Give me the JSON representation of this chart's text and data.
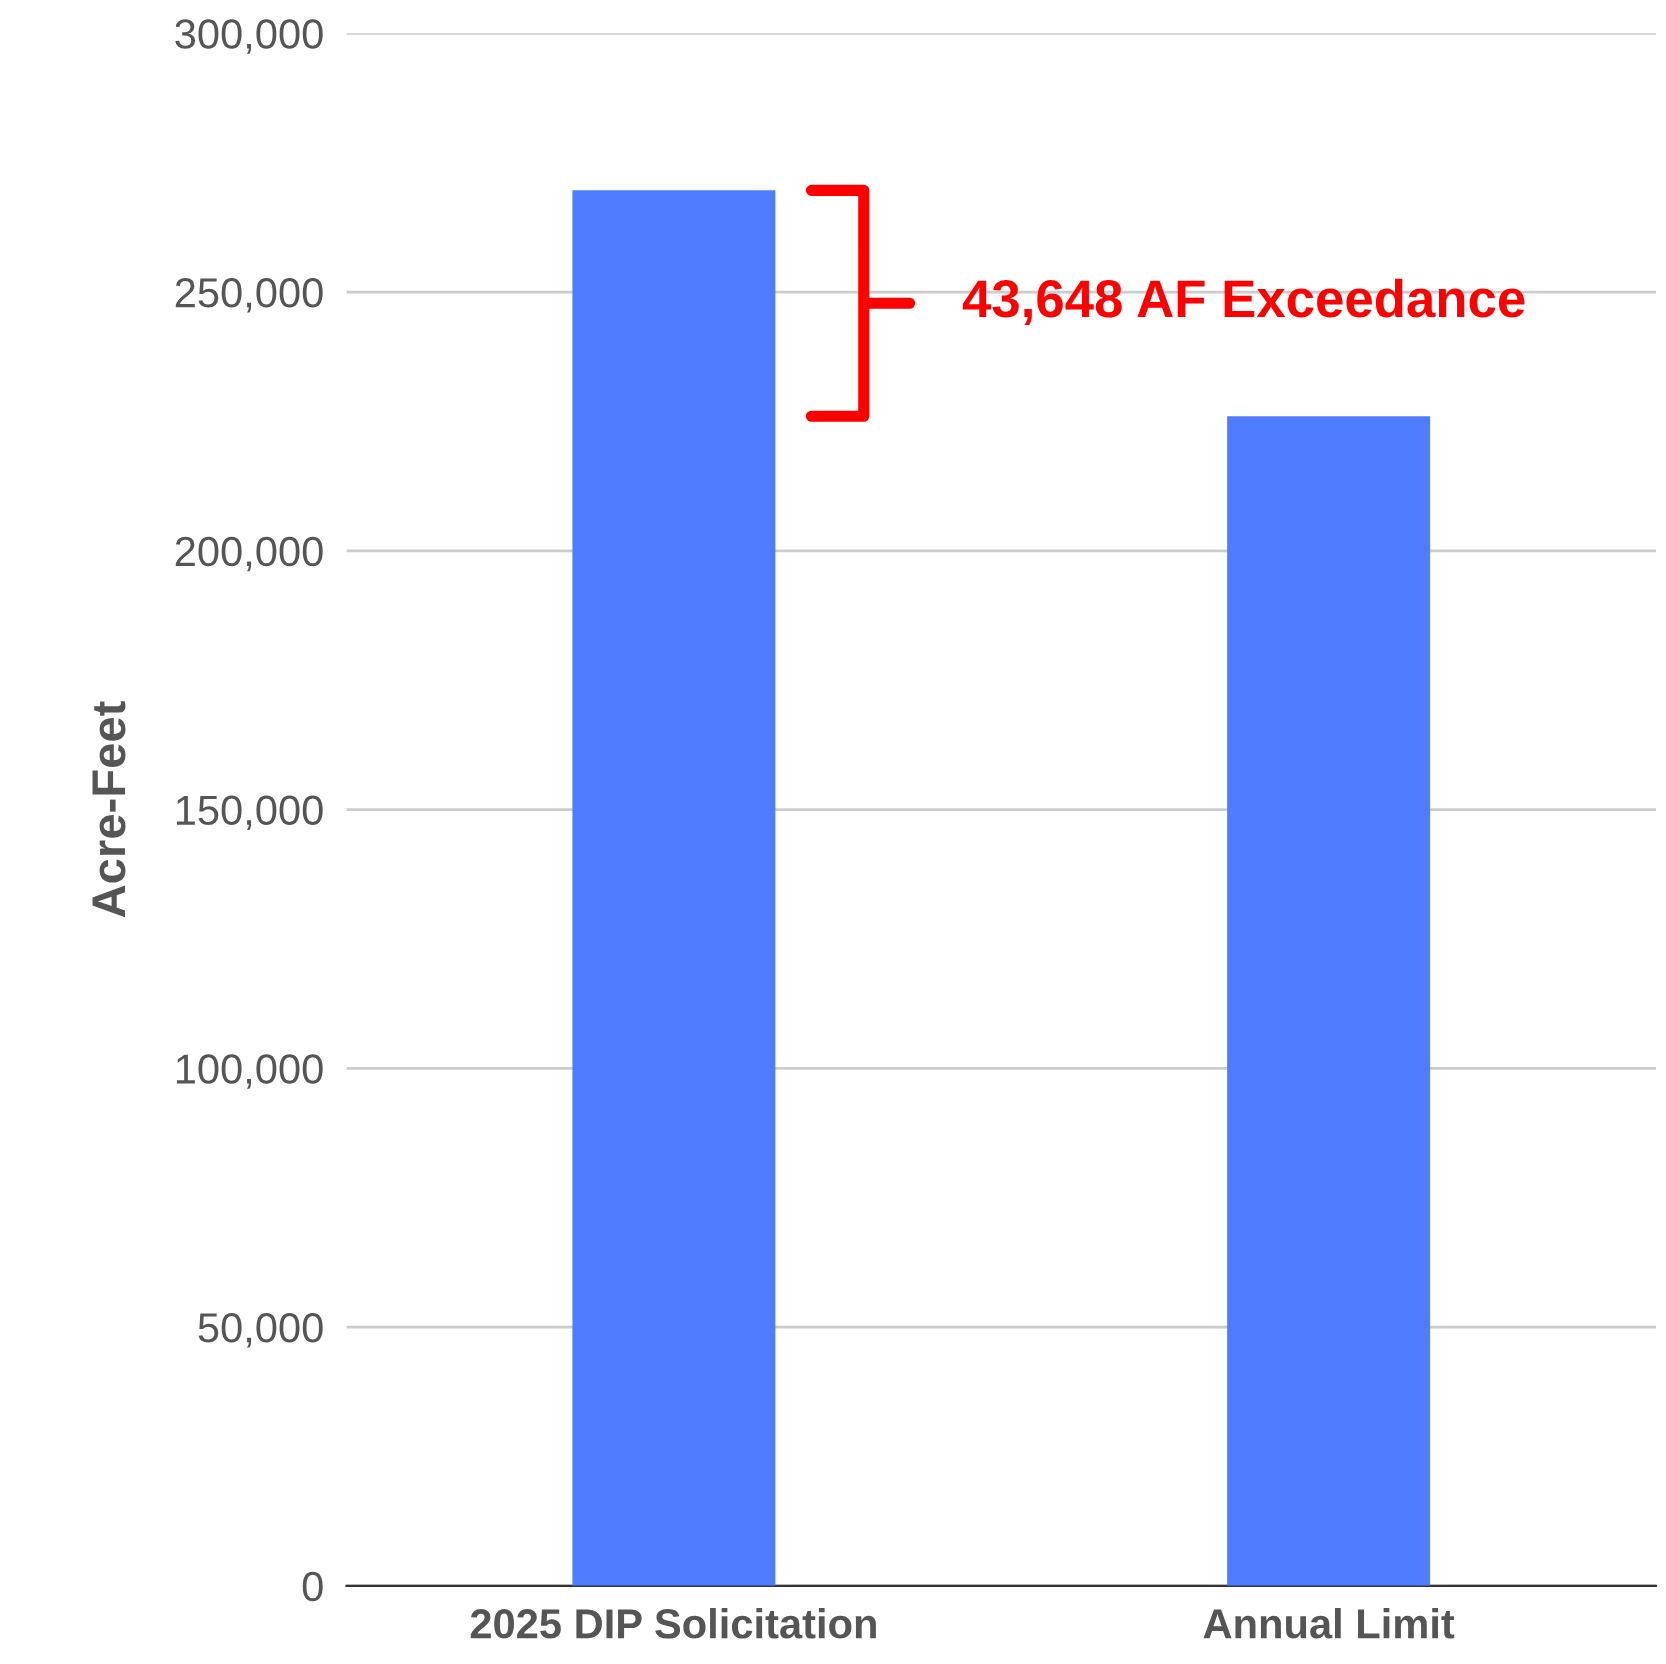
{
  "chart_data": {
    "type": "bar",
    "ylabel": "Acre-Feet",
    "categories": [
      "2025 DIP Solicitation",
      "Annual Limit"
    ],
    "values": [
      269648,
      226000
    ],
    "color": "#4f7cff",
    "ylim": [
      0,
      300000
    ],
    "yticks": [
      {
        "value": 0,
        "label": "0"
      },
      {
        "value": 50000,
        "label": "50,000"
      },
      {
        "value": 100000,
        "label": "100,000"
      },
      {
        "value": 150000,
        "label": "150,000"
      },
      {
        "value": 200000,
        "label": "200,000"
      },
      {
        "value": 250000,
        "label": "250,000"
      },
      {
        "value": 300000,
        "label": "300,000"
      }
    ],
    "grid": "y",
    "legend": false,
    "annotations": [
      "43,648 AF Exceedance"
    ]
  }
}
